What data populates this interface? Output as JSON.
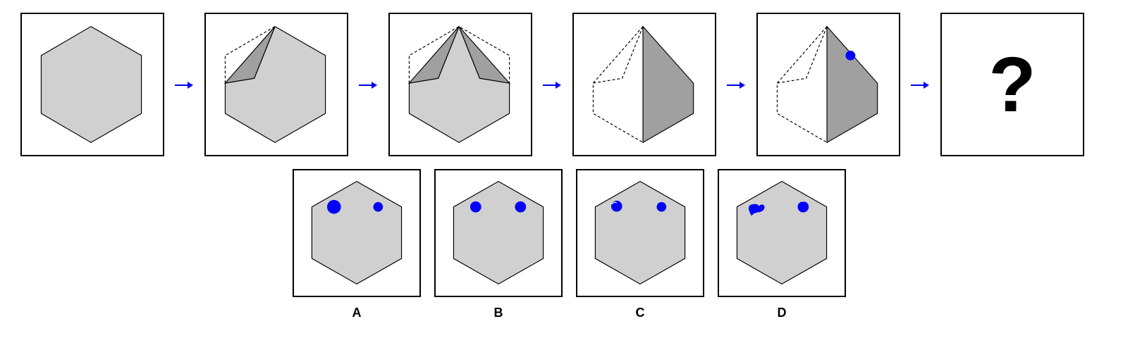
{
  "sequence": {
    "unknown_symbol": "?"
  },
  "options": [
    {
      "label": "A"
    },
    {
      "label": "B"
    },
    {
      "label": "C"
    },
    {
      "label": "D"
    }
  ],
  "colors": {
    "face": "#d0d0d0",
    "fold": "#a0a0a0",
    "dot": "#0000ff",
    "arrow": "#0000ff",
    "stroke": "#000000"
  }
}
